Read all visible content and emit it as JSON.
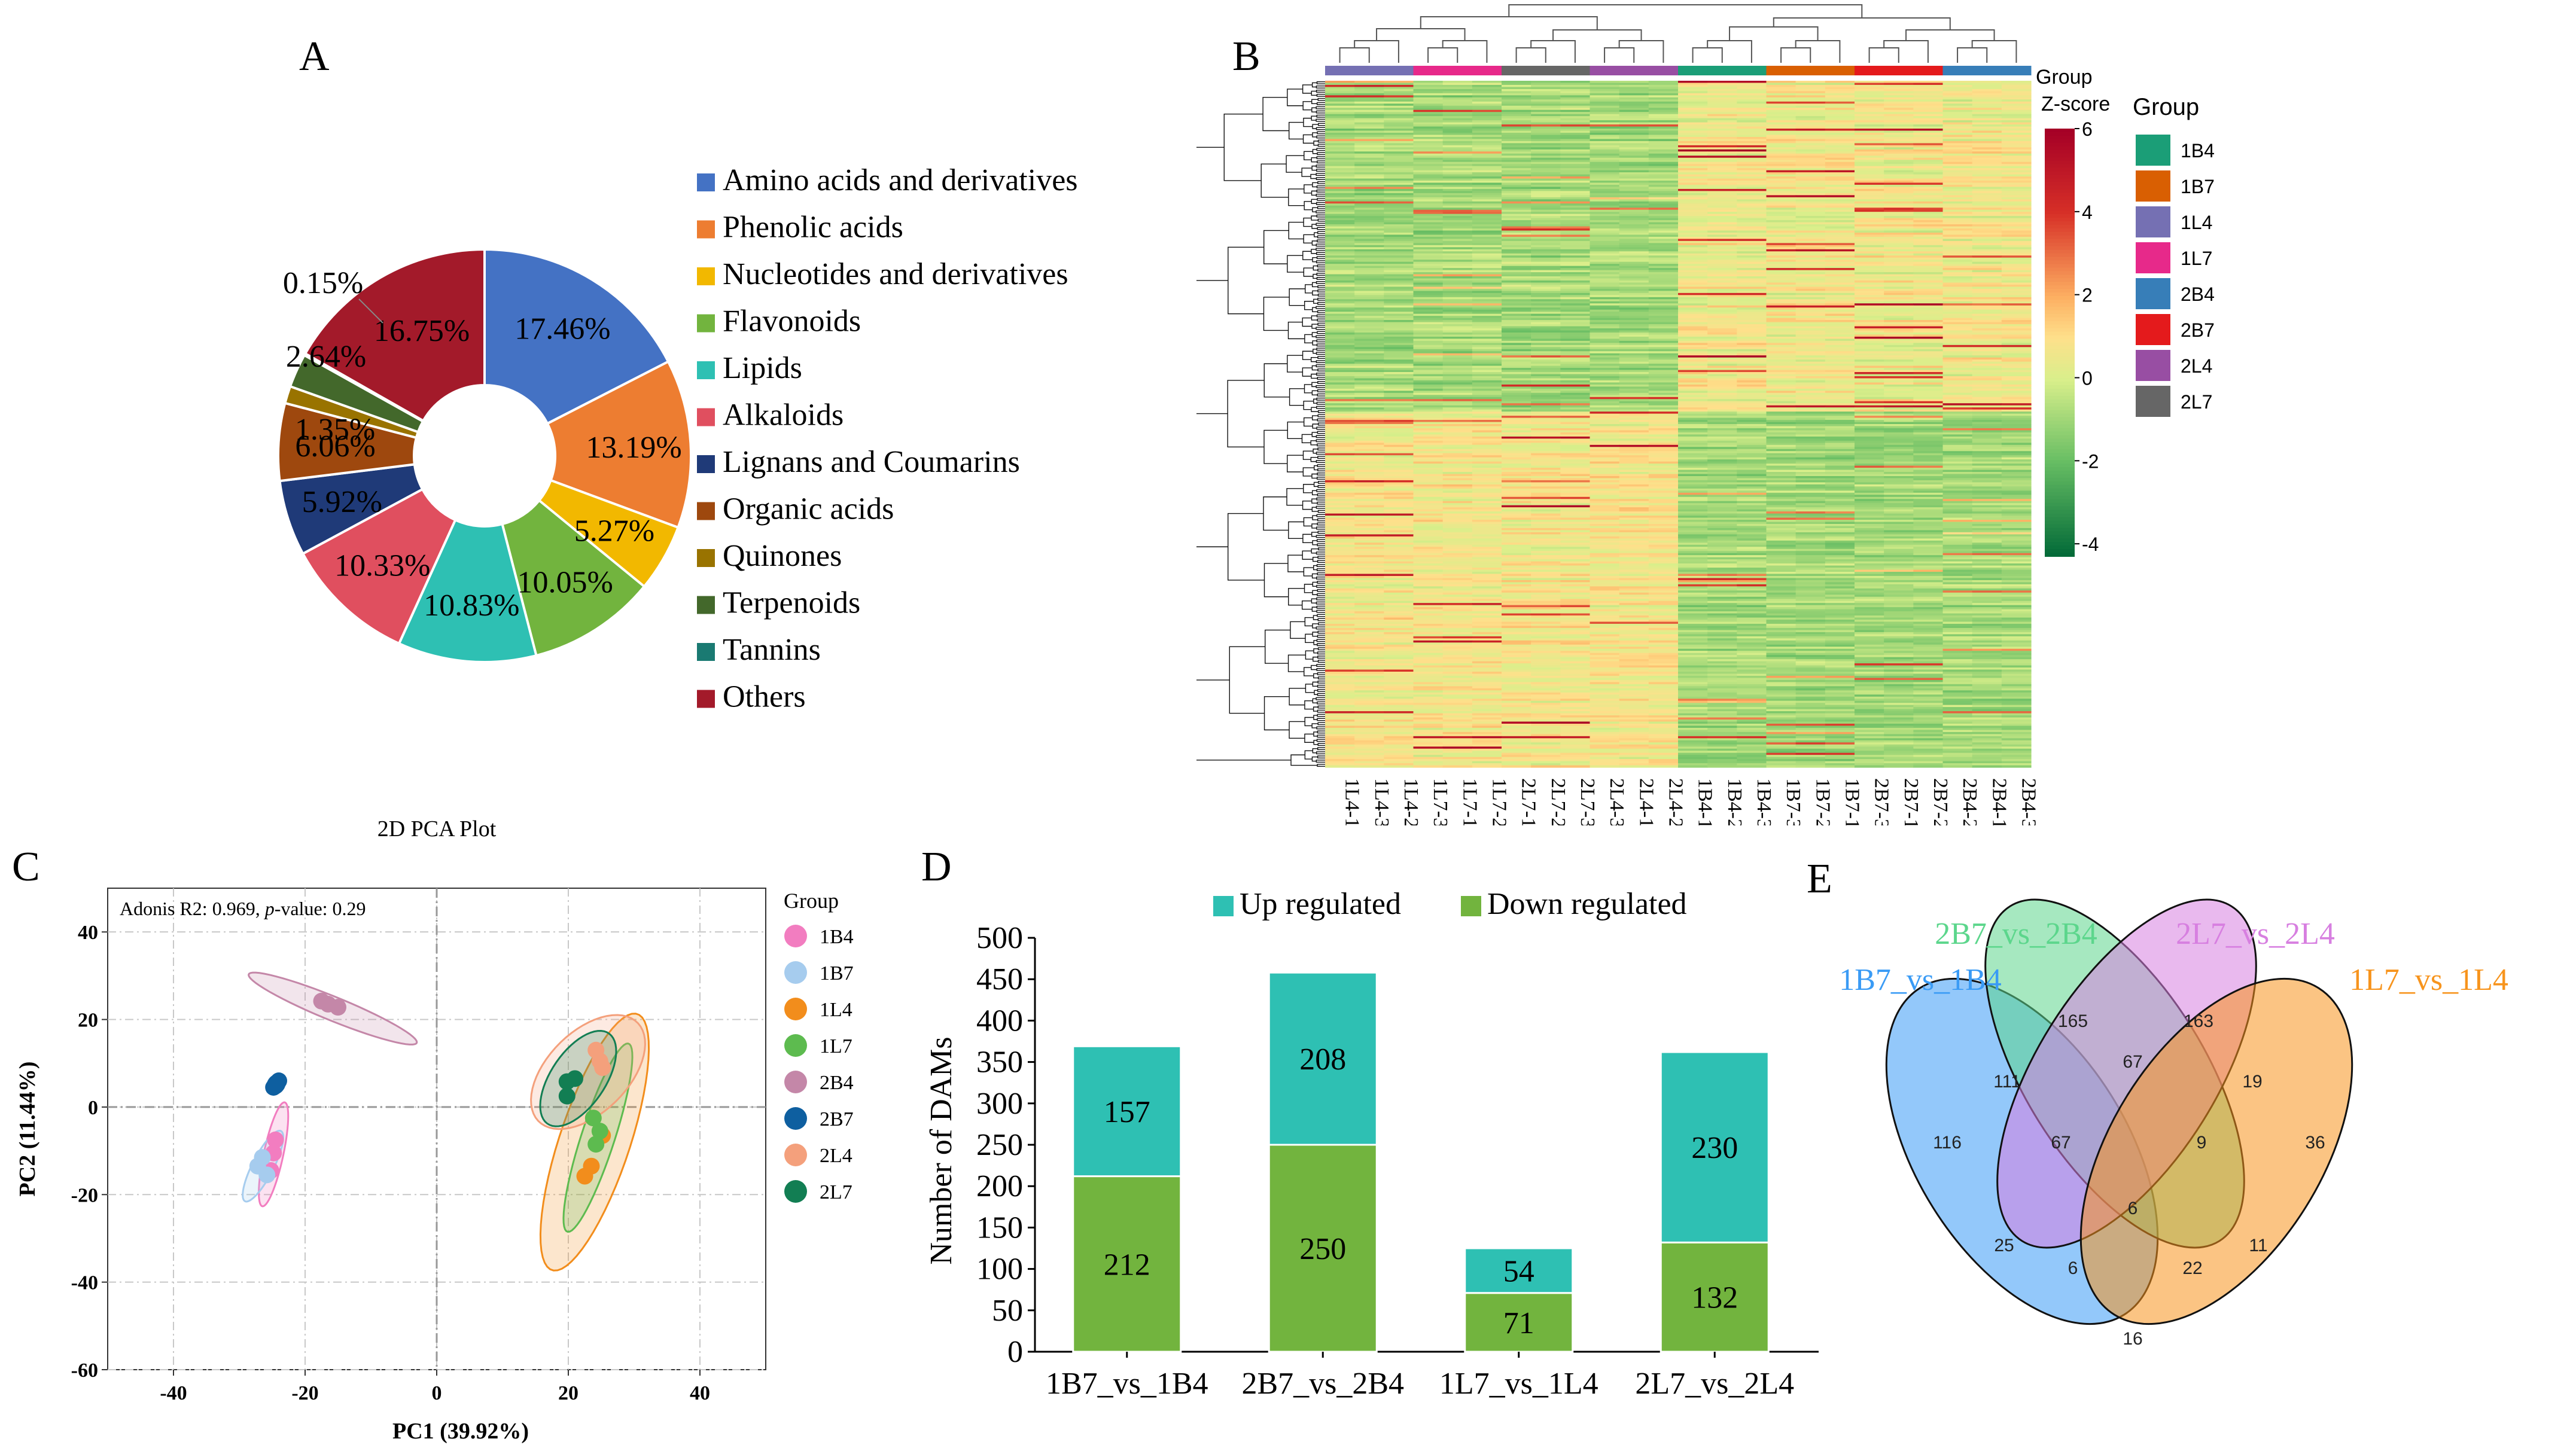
{
  "panels": {
    "A": "A",
    "B": "B",
    "C": "C",
    "D": "D",
    "E": "E"
  },
  "chart_data": [
    {
      "id": "A",
      "type": "pie",
      "variant": "donut",
      "title": "",
      "slices": [
        {
          "label": "Amino acids and derivatives",
          "value": 17.46,
          "text": "17.46%",
          "color": "#4472C4"
        },
        {
          "label": "Phenolic acids",
          "value": 13.19,
          "text": "13.19%",
          "color": "#ED7D31"
        },
        {
          "label": "Nucleotides and derivatives",
          "value": 5.27,
          "text": "5.27%",
          "color": "#F2B800"
        },
        {
          "label": "Flavonoids",
          "value": 10.05,
          "text": "10.05%",
          "color": "#72B43E"
        },
        {
          "label": "Lipids",
          "value": 10.83,
          "text": "10.83%",
          "color": "#2EC0B3"
        },
        {
          "label": "Alkaloids",
          "value": 10.33,
          "text": "10.33%",
          "color": "#E04F5F"
        },
        {
          "label": "Lignans and Coumarins",
          "value": 5.92,
          "text": "5.92%",
          "color": "#1F3A78"
        },
        {
          "label": "Organic acids",
          "value": 6.06,
          "text": "6.06%",
          "color": "#9E480E"
        },
        {
          "label": "Quinones",
          "value": 1.35,
          "text": "1.35%",
          "color": "#997300"
        },
        {
          "label": "Terpenoids",
          "value": 2.64,
          "text": "2.64%",
          "color": "#43682B"
        },
        {
          "label": "Tannins",
          "value": 0.15,
          "text": "0.15%",
          "color": "#1A7A72"
        },
        {
          "label": "Others",
          "value": 16.75,
          "text": "16.75%",
          "color": "#A31A2A"
        }
      ]
    },
    {
      "id": "B",
      "type": "heatmap",
      "title": "",
      "columns": [
        "1L4-1",
        "1L4-3",
        "1L4-2",
        "1L7-3",
        "1L7-1",
        "1L7-2",
        "2L7-1",
        "2L7-2",
        "2L7-3",
        "2L4-3",
        "2L4-1",
        "2L4-2",
        "1B4-1",
        "1B4-2",
        "1B4-3",
        "1B7-3",
        "1B7-2",
        "1B7-1",
        "2B7-3",
        "2B7-1",
        "2B7-2",
        "2B4-2",
        "2B4-1",
        "2B4-3"
      ],
      "column_groups": [
        "1L4",
        "1L4",
        "1L4",
        "1L7",
        "1L7",
        "1L7",
        "2L7",
        "2L7",
        "2L7",
        "2L4",
        "2L4",
        "2L4",
        "1B4",
        "1B4",
        "1B4",
        "1B7",
        "1B7",
        "1B7",
        "2B7",
        "2B7",
        "2B7",
        "2B4",
        "2B4",
        "2B4"
      ],
      "group_track_label": "Group",
      "colorbar_title": "Z-score",
      "colorbar_ticks": [
        6,
        4,
        2,
        0,
        -2,
        -4
      ],
      "value_range": [
        -4.3,
        6
      ],
      "legend_title": "Group",
      "legend": [
        {
          "name": "1B4",
          "color": "#1B9E77"
        },
        {
          "name": "1B7",
          "color": "#D95F02"
        },
        {
          "name": "1L4",
          "color": "#7570B3"
        },
        {
          "name": "1L7",
          "color": "#E7298A"
        },
        {
          "name": "2B4",
          "color": "#377EB8"
        },
        {
          "name": "2B7",
          "color": "#E41A1C"
        },
        {
          "name": "2L4",
          "color": "#984EA3"
        },
        {
          "name": "2L7",
          "color": "#666666"
        }
      ]
    },
    {
      "id": "C",
      "type": "scatter",
      "title": "2D PCA Plot",
      "annotation_prefix": "Adonis R2: 0.969, ",
      "annotation_p": "p",
      "annotation_suffix": "-value: 0.29",
      "xlabel": "PC1 (39.92%)",
      "ylabel": "PC2 (11.44%)",
      "xlim": [
        -50,
        50
      ],
      "ylim": [
        -60,
        50
      ],
      "xticks": [
        -40,
        -20,
        0,
        20,
        40
      ],
      "yticks": [
        40,
        20,
        0,
        -20,
        -40,
        -60
      ],
      "legend_title": "Group",
      "series": [
        {
          "name": "1B4",
          "color": "#F27DC0",
          "points": [
            [
              -24.5,
              -7.5
            ],
            [
              -24.8,
              -10.5
            ],
            [
              -25.2,
              -14.5
            ]
          ],
          "ellipse": {
            "cx": -24.8,
            "cy": -10.8,
            "rx": 12,
            "ry": 1.5,
            "angle": 82
          }
        },
        {
          "name": "1B7",
          "color": "#A6CCEE",
          "points": [
            [
              -26.5,
              -11.5
            ],
            [
              -27.2,
              -13.5
            ],
            [
              -25.8,
              -15.5
            ]
          ],
          "ellipse": {
            "cx": -26.4,
            "cy": -13.5,
            "rx": 8.5,
            "ry": 1.7,
            "angle": 72
          }
        },
        {
          "name": "1L4",
          "color": "#F28D1C",
          "points": [
            [
              25.2,
              -6.5
            ],
            [
              23.5,
              -13.5
            ],
            [
              22.5,
              -15.8
            ]
          ],
          "ellipse": {
            "cx": 24,
            "cy": -8,
            "rx": 30,
            "ry": 5.5,
            "angle": 78
          }
        },
        {
          "name": "1L7",
          "color": "#5DBB4F",
          "points": [
            [
              24.8,
              -5.5
            ],
            [
              24.2,
              -8.5
            ],
            [
              23.8,
              -2.5
            ]
          ],
          "ellipse": {
            "cx": 24.5,
            "cy": -7,
            "rx": 22,
            "ry": 2.6,
            "angle": 78
          }
        },
        {
          "name": "2B4",
          "color": "#C487A8",
          "points": [
            [
              -16.5,
              23.5
            ],
            [
              -15,
              22.8
            ],
            [
              -17.5,
              24.2
            ]
          ],
          "ellipse": {
            "cx": -15.8,
            "cy": 22.5,
            "rx": 15,
            "ry": 2.5,
            "angle": -32
          }
        },
        {
          "name": "2B7",
          "color": "#0E5FA0",
          "points": [
            [
              -24.5,
              5
            ],
            [
              -24,
              6
            ],
            [
              -24.8,
              4.5
            ]
          ],
          "ellipse": {
            "cx": -24.4,
            "cy": 5.2,
            "rx": 2.2,
            "ry": 1.3,
            "angle": 80
          }
        },
        {
          "name": "2L4",
          "color": "#F4A07C",
          "points": [
            [
              24.2,
              13
            ],
            [
              24.8,
              10.5
            ],
            [
              25.2,
              9
            ]
          ],
          "ellipse": {
            "cx": 23,
            "cy": 8,
            "rx": 14,
            "ry": 7,
            "angle": 65
          }
        },
        {
          "name": "2L7",
          "color": "#127E53",
          "points": [
            [
              19.8,
              5.8
            ],
            [
              21,
              6.5
            ],
            [
              19.8,
              2.5
            ]
          ],
          "ellipse": {
            "cx": 21.5,
            "cy": 6.5,
            "rx": 11.5,
            "ry": 4.5,
            "angle": 70
          }
        }
      ]
    },
    {
      "id": "D",
      "type": "bar",
      "stacked": true,
      "title": "",
      "ylabel": "Number of DAMs",
      "xlabel": "",
      "ylim": [
        0,
        500
      ],
      "yticks": [
        0,
        50,
        100,
        150,
        200,
        250,
        300,
        350,
        400,
        450,
        500
      ],
      "categories": [
        "1B7_vs_1B4",
        "2B7_vs_2B4",
        "1L7_vs_1L4",
        "2L7_vs_2L4"
      ],
      "series": [
        {
          "name": "Down regulated",
          "color": "#72B43E",
          "values": [
            212,
            250,
            71,
            132
          ]
        },
        {
          "name": "Up regulated",
          "color": "#2EC0B3",
          "values": [
            157,
            208,
            54,
            230
          ]
        }
      ]
    },
    {
      "id": "E",
      "type": "venn",
      "title": "",
      "sets": [
        {
          "name": "1B7_vs_1B4",
          "color": "#3A9BF5"
        },
        {
          "name": "2B7_vs_2B4",
          "color": "#5CD68C"
        },
        {
          "name": "2L7_vs_2L4",
          "color": "#D77FE0"
        },
        {
          "name": "1L7_vs_1L4",
          "color": "#F7941D"
        }
      ],
      "regions": [
        {
          "sets": "A",
          "value": 116
        },
        {
          "sets": "B",
          "value": 165
        },
        {
          "sets": "C",
          "value": 163
        },
        {
          "sets": "D",
          "value": 36
        },
        {
          "sets": "AB",
          "value": 111
        },
        {
          "sets": "BC",
          "value": 67
        },
        {
          "sets": "CD",
          "value": 19
        },
        {
          "sets": "ABC",
          "value": 67
        },
        {
          "sets": "BCD",
          "value": 9
        },
        {
          "sets": "AC",
          "value": 25
        },
        {
          "sets": "ABCD",
          "value": 6
        },
        {
          "sets": "BD",
          "value": 11
        },
        {
          "sets": "ACD",
          "value": 6
        },
        {
          "sets": "ABD",
          "value": 22
        },
        {
          "sets": "AD",
          "value": 16
        }
      ]
    }
  ]
}
